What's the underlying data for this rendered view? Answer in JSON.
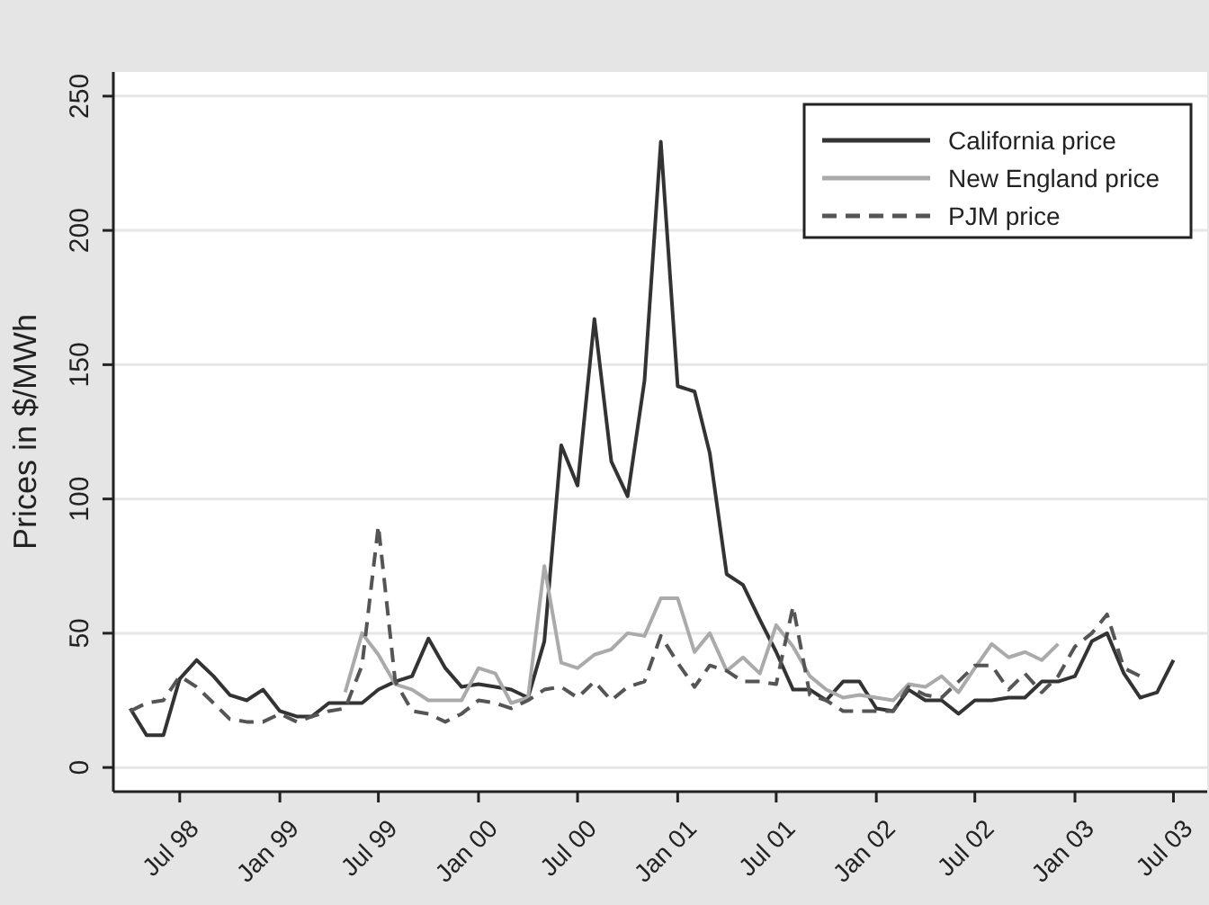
{
  "chart_data": {
    "type": "line",
    "ylabel": "Prices in $/MWh",
    "x": [
      "1998-04",
      "1998-05",
      "1998-06",
      "1998-07",
      "1998-08",
      "1998-09",
      "1998-10",
      "1998-11",
      "1998-12",
      "1999-01",
      "1999-02",
      "1999-03",
      "1999-04",
      "1999-05",
      "1999-06",
      "1999-07",
      "1999-08",
      "1999-09",
      "1999-10",
      "1999-11",
      "1999-12",
      "2000-01",
      "2000-02",
      "2000-03",
      "2000-04",
      "2000-05",
      "2000-06",
      "2000-07",
      "2000-08",
      "2000-09",
      "2000-10",
      "2000-11",
      "2000-12",
      "2001-01",
      "2001-02",
      "2001-03",
      "2001-04",
      "2001-05",
      "2001-06",
      "2001-07",
      "2001-08",
      "2001-09",
      "2001-10",
      "2001-11",
      "2001-12",
      "2002-01",
      "2002-02",
      "2002-03",
      "2002-04",
      "2002-05",
      "2002-06",
      "2002-07",
      "2002-08",
      "2002-09",
      "2002-10",
      "2002-11",
      "2002-12",
      "2003-01",
      "2003-02",
      "2003-03",
      "2003-04",
      "2003-05",
      "2003-06",
      "2003-07"
    ],
    "series": [
      {
        "name": "California price",
        "color": "#333333",
        "line_style": "solid",
        "values": [
          22,
          12,
          12,
          33,
          40,
          34,
          27,
          25,
          29,
          21,
          19,
          19,
          24,
          24,
          24,
          29,
          32,
          34,
          48,
          37,
          30,
          31,
          30,
          29,
          26,
          47,
          120,
          105,
          167,
          114,
          101,
          144,
          233,
          142,
          140,
          117,
          72,
          68,
          55,
          43,
          29,
          29,
          25,
          32,
          32,
          22,
          21,
          29,
          25,
          25,
          20,
          25,
          25,
          26,
          26,
          32,
          32,
          34,
          47,
          50,
          35,
          26,
          28,
          40
        ]
      },
      {
        "name": "New England price",
        "color": "#aaaaaa",
        "line_style": "solid",
        "values": [
          null,
          null,
          null,
          null,
          null,
          null,
          null,
          null,
          null,
          null,
          null,
          null,
          null,
          28,
          50,
          42,
          31,
          29,
          25,
          25,
          25,
          37,
          35,
          24,
          26,
          75,
          39,
          37,
          42,
          44,
          50,
          49,
          63,
          63,
          43,
          50,
          36,
          41,
          35,
          53,
          45,
          34,
          29,
          26,
          27,
          26,
          25,
          31,
          30,
          34,
          28,
          37,
          46,
          41,
          43,
          40,
          46,
          null,
          null,
          null,
          null,
          null,
          null,
          null
        ]
      },
      {
        "name": "PJM price",
        "color": "#555555",
        "line_style": "dashed",
        "values": [
          21,
          24,
          25,
          34,
          30,
          24,
          18,
          17,
          17,
          20,
          17,
          19,
          21,
          22,
          38,
          90,
          32,
          21,
          20,
          17,
          20,
          25,
          24,
          22,
          25,
          29,
          30,
          26,
          32,
          25,
          30,
          32,
          49,
          39,
          30,
          38,
          36,
          32,
          32,
          31,
          60,
          27,
          25,
          21,
          21,
          21,
          21,
          30,
          27,
          26,
          32,
          38,
          38,
          29,
          35,
          28,
          34,
          45,
          50,
          57,
          37,
          34,
          null,
          null
        ]
      }
    ],
    "xlim": [
      "1998-03",
      "2003-09"
    ],
    "xticks": [
      {
        "value": "1998-07",
        "label": "Jul 98"
      },
      {
        "value": "1999-01",
        "label": "Jan 99"
      },
      {
        "value": "1999-07",
        "label": "Jul 99"
      },
      {
        "value": "2000-01",
        "label": "Jan 00"
      },
      {
        "value": "2000-07",
        "label": "Jul 00"
      },
      {
        "value": "2001-01",
        "label": "Jan 01"
      },
      {
        "value": "2001-07",
        "label": "Jul 01"
      },
      {
        "value": "2002-01",
        "label": "Jan 02"
      },
      {
        "value": "2002-07",
        "label": "Jul 02"
      },
      {
        "value": "2003-01",
        "label": "Jan 03"
      },
      {
        "value": "2003-07",
        "label": "Jul 03"
      }
    ],
    "ylim": [
      -9,
      259
    ],
    "yticks": [
      0,
      50,
      100,
      150,
      200,
      250
    ],
    "grid": "y",
    "legend": "top right",
    "marker": "none"
  }
}
